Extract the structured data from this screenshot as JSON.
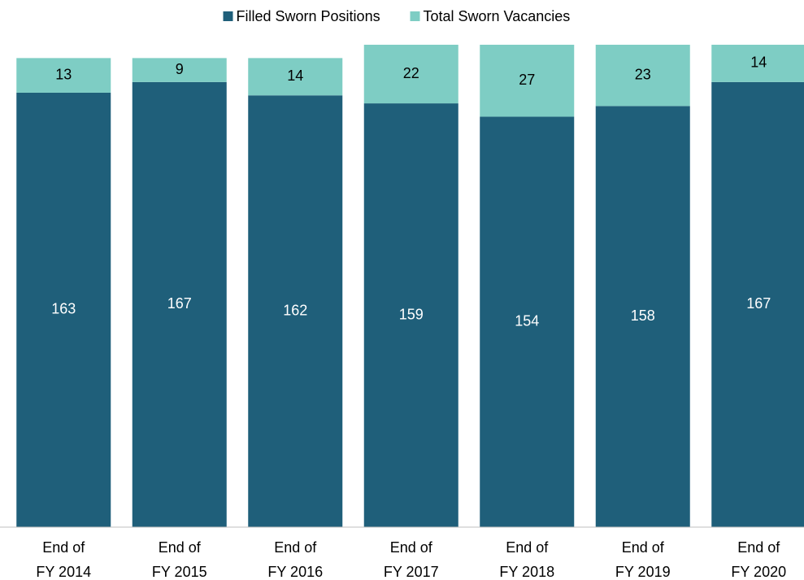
{
  "chart_data": {
    "type": "stacked_bar",
    "categories": [
      "End of\nFY 2014",
      "End of\nFY 2015",
      "End of\nFY 2016",
      "End of\nFY 2017",
      "End of\nFY 2018",
      "End of\nFY 2019",
      "End of\nFY 2020"
    ],
    "series": [
      {
        "name": "Filled Sworn Positions",
        "color": "#1f5f7a",
        "values": [
          163,
          167,
          162,
          159,
          154,
          158,
          167
        ]
      },
      {
        "name": "Total Sworn Vacancies",
        "color": "#7ecdc4",
        "values": [
          13,
          9,
          14,
          22,
          27,
          23,
          14
        ]
      }
    ],
    "legend": "top"
  }
}
